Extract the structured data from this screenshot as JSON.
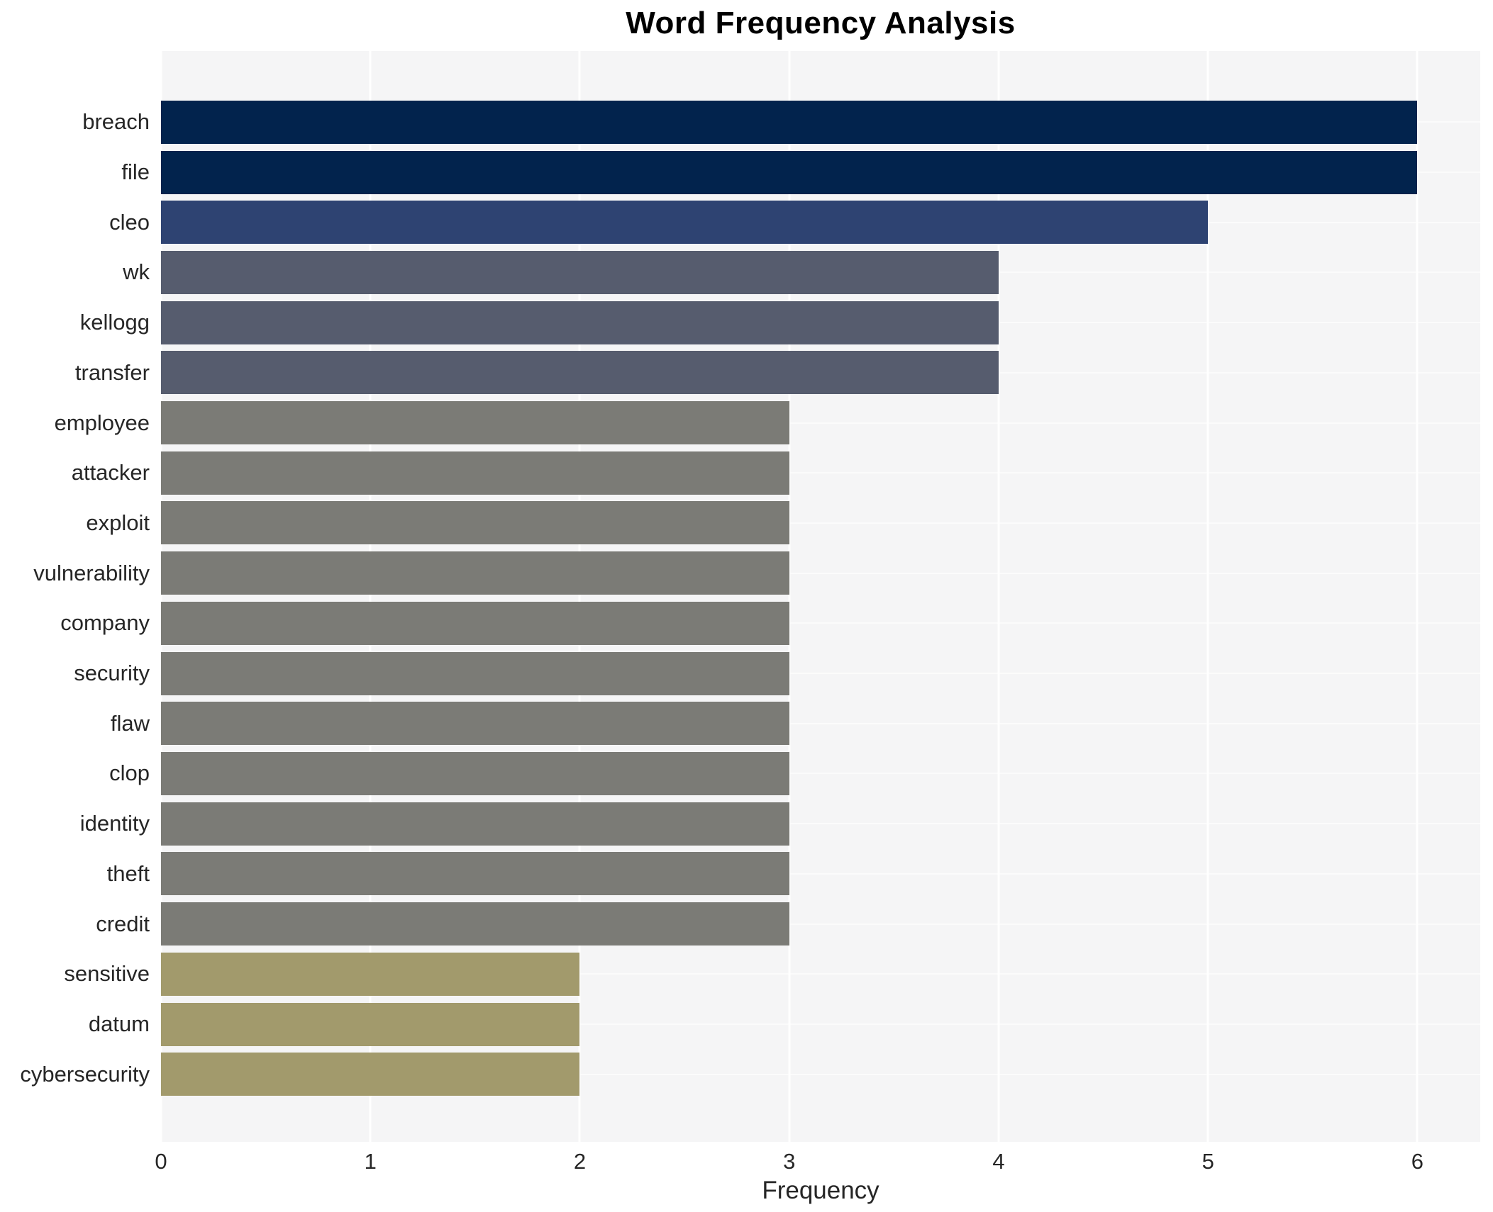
{
  "chart_data": {
    "type": "bar",
    "orientation": "horizontal",
    "title": "Word Frequency Analysis",
    "xlabel": "Frequency",
    "ylabel": "",
    "categories": [
      "breach",
      "file",
      "cleo",
      "wk",
      "kellogg",
      "transfer",
      "employee",
      "attacker",
      "exploit",
      "vulnerability",
      "company",
      "security",
      "flaw",
      "clop",
      "identity",
      "theft",
      "credit",
      "sensitive",
      "datum",
      "cybersecurity"
    ],
    "values": [
      6,
      6,
      5,
      4,
      4,
      4,
      3,
      3,
      3,
      3,
      3,
      3,
      3,
      3,
      3,
      3,
      3,
      2,
      2,
      2
    ],
    "bar_colors": [
      "#02234d",
      "#02234d",
      "#2e4372",
      "#565c6e",
      "#565c6e",
      "#565c6e",
      "#7b7b76",
      "#7b7b76",
      "#7b7b76",
      "#7b7b76",
      "#7b7b76",
      "#7b7b76",
      "#7b7b76",
      "#7b7b76",
      "#7b7b76",
      "#7b7b76",
      "#7b7b76",
      "#a29a6c",
      "#a29a6c",
      "#a29a6c"
    ],
    "xlim": [
      0,
      6.3
    ],
    "xticks": [
      0,
      1,
      2,
      3,
      4,
      5,
      6
    ],
    "legend_position": "none",
    "grid": "vertical-and-horizontal-white-lines",
    "colors": {
      "plot_background": "#f5f5f6",
      "figure_background": "#ffffff",
      "grid_line": "#ffffff",
      "text": "#262626",
      "title_text": "#000000"
    }
  }
}
